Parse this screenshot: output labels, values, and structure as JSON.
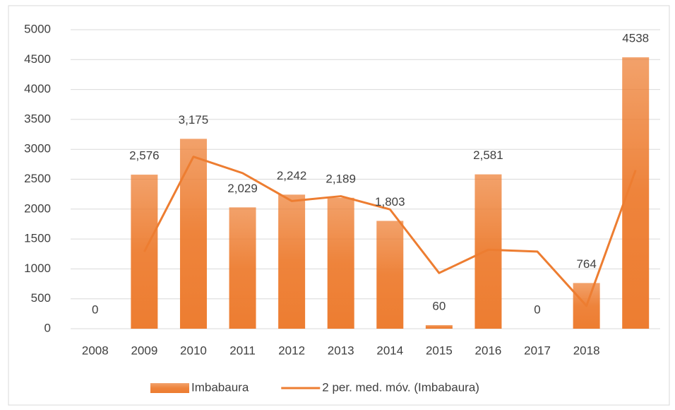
{
  "chart_data": {
    "type": "bar",
    "categories": [
      "2008",
      "2009",
      "2010",
      "2011",
      "2012",
      "2013",
      "2014",
      "2015",
      "2016",
      "2017",
      "2018",
      null
    ],
    "series": [
      {
        "name": "Imbabaura",
        "type": "bar",
        "color": "#ed7d31",
        "values": [
          0,
          2576,
          3175,
          2029,
          2242,
          2189,
          1803,
          60,
          2581,
          0,
          764,
          4538
        ],
        "value_labels": [
          "0",
          "2,576",
          "3,175",
          "2,029",
          "2,242",
          "2,189",
          "1,803",
          "60",
          "2,581",
          "0",
          "764",
          "4538"
        ]
      },
      {
        "name": "2 per. med. móv. (Imbabaura)",
        "type": "line",
        "color": "#ed7d31",
        "values": [
          null,
          1288,
          2875.5,
          2602,
          2135.5,
          2215.5,
          1996,
          931.5,
          1320.5,
          1290.5,
          382,
          2651
        ]
      }
    ],
    "ylim": [
      0,
      5000
    ],
    "yticks": [
      0,
      500,
      1000,
      1500,
      2000,
      2500,
      3000,
      3500,
      4000,
      4500,
      5000
    ],
    "grid": true,
    "legend": "bottom"
  }
}
